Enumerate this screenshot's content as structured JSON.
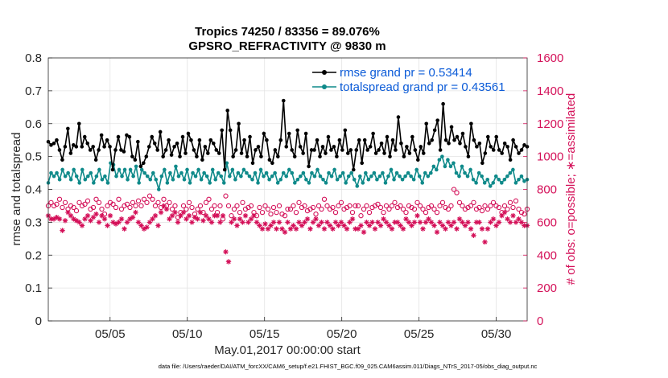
{
  "chart_data": {
    "type": "line",
    "title": "Tropics 74250 / 83356 = 89.076%",
    "subtitle": "GPSRO_REFRACTIVITY @ 9830 m",
    "xlabel": "May.01,2017 00:00:00 start",
    "ylabel": "rmse and totalspread",
    "ylabel_right": "# of obs: o=possible; ∗=assimilated",
    "footnote": "data file: /Users/raeder/DAI/ATM_forcXX/CAM6_setup/f.e21.FHIST_BGC.f09_025.CAM6assim.011/Diags_NTrS_2017-05/obs_diag_output.nc",
    "xlim": [
      1,
      32
    ],
    "ylim": [
      0,
      0.8
    ],
    "ylim_right": [
      0,
      1600
    ],
    "x_ticks": [
      5,
      10,
      15,
      20,
      25,
      30
    ],
    "x_tick_labels": [
      "05/05",
      "05/10",
      "05/15",
      "05/20",
      "05/25",
      "05/30"
    ],
    "y_tick_labels": [
      "0",
      "0.1",
      "0.2",
      "0.3",
      "0.4",
      "0.5",
      "0.6",
      "0.7",
      "0.8"
    ],
    "y_right_tick_labels": [
      "0",
      "200",
      "400",
      "600",
      "800",
      "1000",
      "1200",
      "1400",
      "1600"
    ],
    "grid": true,
    "legend_position": "top-right",
    "colors": {
      "rmse": "#000000",
      "totalspread": "#0f8a8a",
      "obs": "#d41159",
      "legend_text": "#0b5bd8"
    },
    "series": [
      {
        "name": "rmse grand pr = 0.53414",
        "axis": "left",
        "marker": "filled-circle",
        "values": [
          0.545,
          0.535,
          0.54,
          0.55,
          0.52,
          0.49,
          0.53,
          0.585,
          0.51,
          0.535,
          0.53,
          0.6,
          0.53,
          0.56,
          0.54,
          0.52,
          0.53,
          0.49,
          0.52,
          0.565,
          0.53,
          0.55,
          0.53,
          0.46,
          0.52,
          0.56,
          0.52,
          0.515,
          0.565,
          0.56,
          0.5,
          0.49,
          0.545,
          0.47,
          0.48,
          0.5,
          0.53,
          0.56,
          0.54,
          0.52,
          0.575,
          0.5,
          0.52,
          0.55,
          0.505,
          0.53,
          0.54,
          0.5,
          0.56,
          0.51,
          0.57,
          0.55,
          0.52,
          0.5,
          0.55,
          0.49,
          0.53,
          0.51,
          0.55,
          0.54,
          0.52,
          0.51,
          0.58,
          0.46,
          0.64,
          0.58,
          0.5,
          0.52,
          0.6,
          0.51,
          0.55,
          0.5,
          0.56,
          0.48,
          0.52,
          0.53,
          0.5,
          0.57,
          0.55,
          0.49,
          0.48,
          0.52,
          0.5,
          0.55,
          0.67,
          0.53,
          0.57,
          0.52,
          0.5,
          0.58,
          0.53,
          0.51,
          0.57,
          0.47,
          0.52,
          0.52,
          0.55,
          0.5,
          0.53,
          0.51,
          0.56,
          0.52,
          0.53,
          0.5,
          0.55,
          0.52,
          0.58,
          0.51,
          0.52,
          0.46,
          0.52,
          0.55,
          0.48,
          0.55,
          0.52,
          0.53,
          0.57,
          0.51,
          0.52,
          0.54,
          0.51,
          0.56,
          0.5,
          0.55,
          0.52,
          0.62,
          0.54,
          0.5,
          0.53,
          0.51,
          0.56,
          0.52,
          0.49,
          0.53,
          0.51,
          0.6,
          0.54,
          0.55,
          0.58,
          0.61,
          0.52,
          0.66,
          0.55,
          0.54,
          0.59,
          0.55,
          0.56,
          0.54,
          0.57,
          0.53,
          0.5,
          0.6,
          0.55,
          0.53,
          0.54,
          0.48,
          0.51,
          0.56,
          0.53,
          0.52,
          0.56,
          0.52,
          0.51,
          0.54,
          0.53,
          0.49,
          0.55,
          0.53,
          0.51,
          0.52,
          0.535,
          0.53
        ]
      },
      {
        "name": "totalspread grand pr = 0.43561",
        "axis": "left",
        "marker": "filled-circle",
        "values": [
          0.42,
          0.45,
          0.44,
          0.45,
          0.43,
          0.46,
          0.44,
          0.45,
          0.43,
          0.46,
          0.44,
          0.42,
          0.46,
          0.43,
          0.44,
          0.45,
          0.42,
          0.44,
          0.46,
          0.43,
          0.44,
          0.42,
          0.48,
          0.475,
          0.44,
          0.46,
          0.44,
          0.46,
          0.43,
          0.46,
          0.44,
          0.47,
          0.42,
          0.46,
          0.45,
          0.44,
          0.43,
          0.45,
          0.43,
          0.4,
          0.44,
          0.46,
          0.42,
          0.45,
          0.43,
          0.47,
          0.44,
          0.45,
          0.43,
          0.46,
          0.42,
          0.45,
          0.44,
          0.46,
          0.43,
          0.45,
          0.44,
          0.42,
          0.46,
          0.43,
          0.45,
          0.44,
          0.42,
          0.48,
          0.44,
          0.46,
          0.43,
          0.45,
          0.44,
          0.46,
          0.45,
          0.44,
          0.43,
          0.45,
          0.42,
          0.46,
          0.44,
          0.45,
          0.43,
          0.44,
          0.45,
          0.42,
          0.43,
          0.45,
          0.44,
          0.46,
          0.45,
          0.42,
          0.43,
          0.44,
          0.45,
          0.43,
          0.42,
          0.45,
          0.44,
          0.46,
          0.44,
          0.43,
          0.42,
          0.45,
          0.44,
          0.46,
          0.43,
          0.44,
          0.45,
          0.42,
          0.44,
          0.45,
          0.43,
          0.41,
          0.44,
          0.42,
          0.45,
          0.43,
          0.44,
          0.45,
          0.43,
          0.44,
          0.45,
          0.42,
          0.44,
          0.46,
          0.43,
          0.45,
          0.44,
          0.43,
          0.44,
          0.45,
          0.44,
          0.43,
          0.46,
          0.44,
          0.42,
          0.45,
          0.44,
          0.45,
          0.47,
          0.46,
          0.49,
          0.5,
          0.47,
          0.49,
          0.47,
          0.48,
          0.45,
          0.44,
          0.47,
          0.45,
          0.44,
          0.46,
          0.43,
          0.42,
          0.45,
          0.44,
          0.42,
          0.43,
          0.41,
          0.42,
          0.44,
          0.43,
          0.42,
          0.43,
          0.44,
          0.45,
          0.46,
          0.42,
          0.43,
          0.44,
          0.425,
          0.43
        ]
      },
      {
        "name": "possible",
        "axis": "right",
        "marker": "open-circle",
        "values": [
          700,
          720,
          700,
          710,
          740,
          690,
          720,
          680,
          700,
          690,
          670,
          720,
          700,
          710,
          730,
          680,
          690,
          740,
          720,
          680,
          650,
          700,
          720,
          710,
          690,
          740,
          680,
          700,
          710,
          690,
          720,
          700,
          730,
          700,
          740,
          720,
          760,
          740,
          700,
          720,
          690,
          740,
          700,
          720,
          680,
          700,
          630,
          660,
          700,
          680,
          720,
          690,
          650,
          680,
          700,
          660,
          720,
          740,
          680,
          700,
          660,
          700,
          620,
          760,
          700,
          640,
          680,
          700,
          660,
          720,
          680,
          690,
          700,
          660,
          640,
          690,
          660,
          700,
          680,
          650,
          690,
          660,
          700,
          650,
          640,
          680,
          680,
          700,
          660,
          720,
          690,
          700,
          670,
          680,
          690,
          650,
          700,
          680,
          740,
          700,
          680,
          690,
          660,
          700,
          720,
          680,
          690,
          700,
          660,
          700,
          700,
          640,
          680,
          700,
          660,
          690,
          700,
          710,
          690,
          660,
          700,
          680,
          700,
          720,
          690,
          700,
          680,
          660,
          700,
          690,
          680,
          720,
          700,
          680,
          660,
          690,
          700,
          680,
          660,
          700,
          720,
          690,
          680,
          700,
          800,
          780,
          720,
          700,
          680,
          690,
          700,
          720,
          680,
          690,
          670,
          700,
          680,
          700,
          720,
          700,
          690,
          660,
          700,
          680,
          720,
          690,
          730,
          680,
          660,
          650,
          680
        ]
      },
      {
        "name": "assimilated",
        "axis": "right",
        "marker": "asterisk",
        "values": [
          640,
          620,
          620,
          630,
          620,
          550,
          610,
          660,
          640,
          620,
          610,
          600,
          580,
          620,
          640,
          610,
          630,
          650,
          600,
          640,
          620,
          580,
          640,
          600,
          590,
          600,
          620,
          560,
          600,
          620,
          630,
          660,
          600,
          580,
          560,
          570,
          600,
          620,
          640,
          580,
          660,
          700,
          680,
          620,
          640,
          660,
          600,
          640,
          660,
          620,
          640,
          600,
          630,
          620,
          660,
          610,
          640,
          620,
          600,
          640,
          640,
          600,
          640,
          420,
          360,
          600,
          620,
          580,
          620,
          600,
          640,
          600,
          620,
          640,
          600,
          580,
          560,
          590,
          560,
          580,
          600,
          560,
          600,
          560,
          540,
          600,
          560,
          580,
          560,
          600,
          580,
          600,
          620,
          560,
          600,
          620,
          580,
          600,
          560,
          600,
          580,
          560,
          600,
          580,
          600,
          580,
          560,
          600,
          620,
          560,
          560,
          580,
          540,
          600,
          580,
          600,
          560,
          600,
          580,
          620,
          600,
          580,
          560,
          600,
          600,
          580,
          560,
          620,
          600,
          580,
          600,
          640,
          600,
          560,
          600,
          620,
          600,
          580,
          540,
          600,
          580,
          560,
          600,
          580,
          600,
          560,
          620,
          600,
          580,
          600,
          560,
          520,
          600,
          600,
          560,
          480,
          560,
          600,
          620,
          580,
          600,
          640,
          660,
          620,
          600,
          640,
          600,
          620,
          600,
          580,
          580
        ]
      }
    ]
  }
}
